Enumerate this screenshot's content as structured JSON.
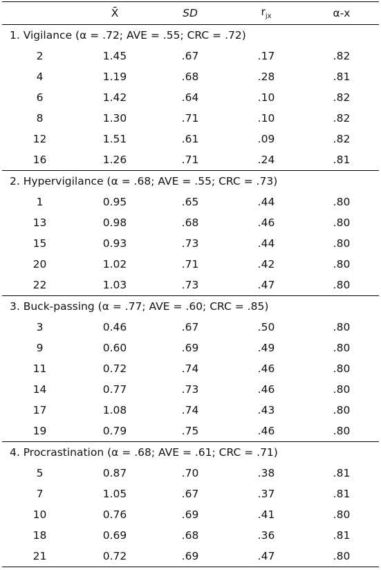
{
  "header": [
    "X̄",
    "SD",
    {
      "text": "r",
      "sub": "jx"
    },
    "α-x"
  ],
  "sections": [
    {
      "title": "1. Vigilance (α = .72; AVE = .55; CRC = .72)",
      "rows": [
        [
          "2",
          "1.45",
          ".67",
          ".17",
          ".82"
        ],
        [
          "4",
          "1.19",
          ".68",
          ".28",
          ".81"
        ],
        [
          "6",
          "1.42",
          ".64",
          ".10",
          ".82"
        ],
        [
          "8",
          "1.30",
          ".71",
          ".10",
          ".82"
        ],
        [
          "12",
          "1.51",
          ".61",
          ".09",
          ".82"
        ],
        [
          "16",
          "1.26",
          ".71",
          ".24",
          ".81"
        ]
      ]
    },
    {
      "title": "2. Hypervigilance (α = .68; AVE = .55; CRC = .73)",
      "rows": [
        [
          "1",
          "0.95",
          ".65",
          ".44",
          ".80"
        ],
        [
          "13",
          "0.98",
          ".68",
          ".46",
          ".80"
        ],
        [
          "15",
          "0.93",
          ".73",
          ".44",
          ".80"
        ],
        [
          "20",
          "1.02",
          ".71",
          ".42",
          ".80"
        ],
        [
          "22",
          "1.03",
          ".73",
          ".47",
          ".80"
        ]
      ]
    },
    {
      "title": "3. Buck-passing (α = .77; AVE = .60; CRC = .85)",
      "rows": [
        [
          "3",
          "0.46",
          ".67",
          ".50",
          ".80"
        ],
        [
          "9",
          "0.60",
          ".69",
          ".49",
          ".80"
        ],
        [
          "11",
          "0.72",
          ".74",
          ".46",
          ".80"
        ],
        [
          "14",
          "0.77",
          ".73",
          ".46",
          ".80"
        ],
        [
          "17",
          "1.08",
          ".74",
          ".43",
          ".80"
        ],
        [
          "19",
          "0.79",
          ".75",
          ".46",
          ".80"
        ]
      ]
    },
    {
      "title": "4. Procrastination (α = .68; AVE = .61; CRC = .71)",
      "rows": [
        [
          "5",
          "0.87",
          ".70",
          ".38",
          ".81"
        ],
        [
          "7",
          "1.05",
          ".67",
          ".37",
          ".81"
        ],
        [
          "10",
          "0.76",
          ".69",
          ".41",
          ".80"
        ],
        [
          "18",
          "0.69",
          ".68",
          ".36",
          ".81"
        ],
        [
          "21",
          "0.72",
          ".69",
          ".47",
          ".80"
        ]
      ]
    }
  ]
}
